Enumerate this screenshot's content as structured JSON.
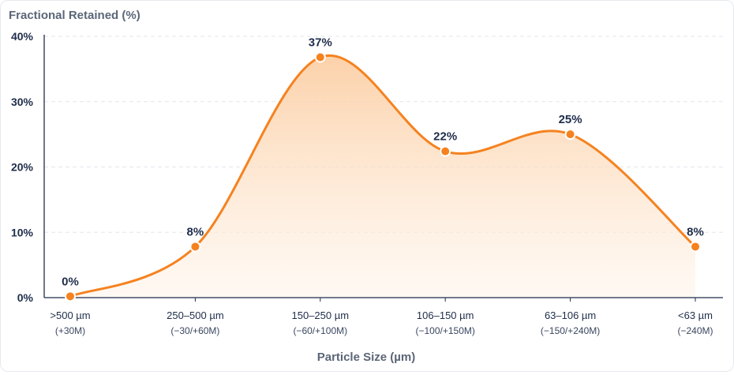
{
  "chart_data": {
    "type": "area",
    "ylabel": "Fractional Retained (%)",
    "xlabel": "Particle Size (µm)",
    "ylim": [
      0,
      40
    ],
    "yticks": [
      "0%",
      "10%",
      "20%",
      "30%",
      "40%"
    ],
    "ytick_values": [
      0,
      10,
      20,
      30,
      40
    ],
    "grid": true,
    "categories": [
      {
        "label": ">500 µm",
        "sublabel": "(+30M)"
      },
      {
        "label": "250–500 µm",
        "sublabel": "(−30/+60M)"
      },
      {
        "label": "150–250 µm",
        "sublabel": "(−60/+100M)"
      },
      {
        "label": "106–150 µm",
        "sublabel": "(−100/+150M)"
      },
      {
        "label": "63–106 µm",
        "sublabel": "(−150/+240M)"
      },
      {
        "label": "<63 µm",
        "sublabel": "(−240M)"
      }
    ],
    "values": [
      0.2,
      7.8,
      36.8,
      22.4,
      25.0,
      7.8
    ],
    "data_labels": [
      "0%",
      "8%",
      "37%",
      "22%",
      "25%",
      "8%"
    ],
    "colors": {
      "line": "#f5821f",
      "fill_top": "#fbc99a",
      "fill_bottom": "#fff3e8",
      "grid": "#e3e6eb",
      "axis": "#1f2d4a"
    }
  }
}
